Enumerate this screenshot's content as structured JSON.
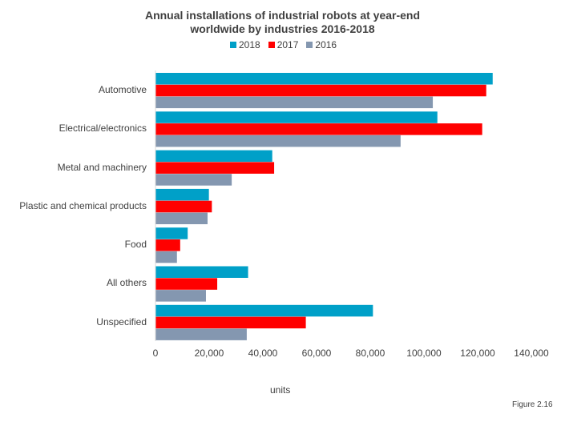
{
  "chart_data": {
    "type": "bar",
    "orientation": "horizontal",
    "title_line1": "Annual installations  of industrial robots at year-end",
    "title_line2": "worldwide  by industries 2016-2018",
    "categories": [
      "Automotive",
      "Electrical/electronics",
      "Metal and machinery",
      "Plastic and chemical products",
      "Food",
      "All others",
      "Unspecified"
    ],
    "series": [
      {
        "name": "2018",
        "color": "#00A0C8",
        "values": [
          125600,
          105000,
          43500,
          19900,
          12000,
          34500,
          81000
        ]
      },
      {
        "name": "2017",
        "color": "#FF0000",
        "values": [
          123200,
          121700,
          44200,
          21000,
          9200,
          23000,
          56000
        ]
      },
      {
        "name": "2016",
        "color": "#8497B0",
        "values": [
          103300,
          91300,
          28400,
          19400,
          8000,
          18800,
          34000
        ]
      }
    ],
    "xlim": [
      0,
      140000
    ],
    "xticks": [
      {
        "value": 0,
        "label": "0"
      },
      {
        "value": 20000,
        "label": "20,000"
      },
      {
        "value": 40000,
        "label": "40,000"
      },
      {
        "value": 60000,
        "label": "60,000"
      },
      {
        "value": 80000,
        "label": "80,000"
      },
      {
        "value": 100000,
        "label": "100,000"
      },
      {
        "value": 120000,
        "label": "120,000"
      },
      {
        "value": 140000,
        "label": "140,000"
      }
    ],
    "xlabel": "units",
    "ylabel": "",
    "legend_position": "top-center",
    "grid": false
  },
  "footer": {
    "figure": "Figure 2.16"
  }
}
